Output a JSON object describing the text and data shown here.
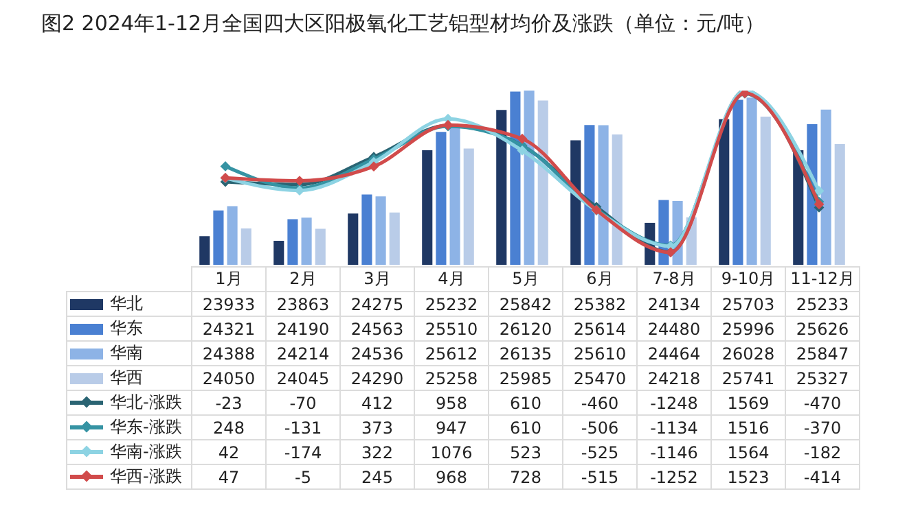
{
  "chart_data": {
    "type": "bar",
    "title": "图2 2024年1-12月全国四大区阳极氧化工艺铝型材均价及涨跌（单位：元/吨）",
    "categories": [
      "1月",
      "2月",
      "3月",
      "4月",
      "5月",
      "6月",
      "7-8月",
      "9-10月",
      "11-12月"
    ],
    "series": [
      {
        "name": "华北",
        "color": "#1f3864",
        "values": [
          23933,
          23863,
          24275,
          25232,
          25842,
          25382,
          24134,
          25703,
          25233
        ]
      },
      {
        "name": "华东",
        "color": "#4a80d2",
        "values": [
          24321,
          24190,
          24563,
          25510,
          26120,
          25614,
          24480,
          25996,
          25626
        ]
      },
      {
        "name": "华南",
        "color": "#8db3e6",
        "values": [
          24388,
          24214,
          24536,
          25612,
          26135,
          25610,
          24464,
          26028,
          25847
        ]
      },
      {
        "name": "华西",
        "color": "#b9cce8",
        "values": [
          24050,
          24045,
          24290,
          25258,
          25985,
          25470,
          24218,
          25741,
          25327
        ]
      },
      {
        "name": "华北-涨跌",
        "type": "line",
        "axis": "y2",
        "color": "#2a6473",
        "values": [
          -23,
          -70,
          412,
          958,
          610,
          -460,
          -1248,
          1569,
          -470
        ]
      },
      {
        "name": "华东-涨跌",
        "type": "line",
        "axis": "y2",
        "color": "#3593a3",
        "values": [
          248,
          -131,
          373,
          947,
          610,
          -506,
          -1134,
          1516,
          -370
        ]
      },
      {
        "name": "华南-涨跌",
        "type": "line",
        "axis": "y2",
        "color": "#8dd3e3",
        "values": [
          42,
          -174,
          322,
          1076,
          523,
          -525,
          -1146,
          1564,
          -182
        ]
      },
      {
        "name": "华西-涨跌",
        "type": "line",
        "axis": "y2",
        "color": "#d14b4b",
        "values": [
          47,
          -5,
          245,
          968,
          728,
          -515,
          -1252,
          1523,
          -414
        ]
      }
    ],
    "ylim": [
      23500,
      26135
    ],
    "y2lim": [
      -1470,
      1569
    ],
    "tick_labels": false,
    "data_labels": true,
    "legend": "left",
    "marker": "diamond"
  }
}
